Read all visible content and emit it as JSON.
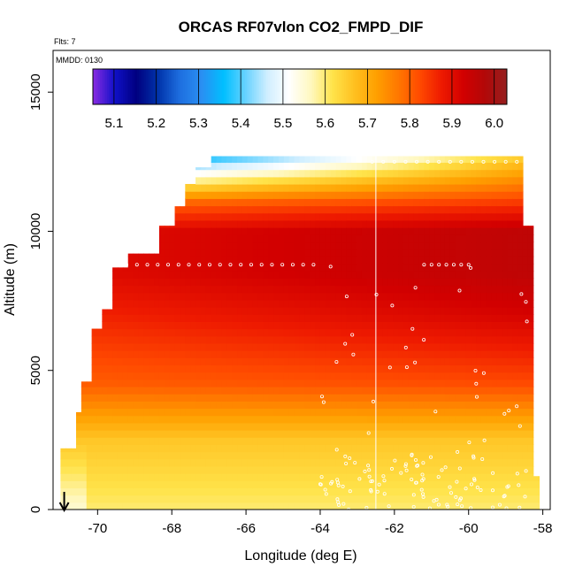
{
  "chart_data": {
    "type": "heatmap",
    "title": "ORCAS RF07vlon CO2_FMPD_DIF",
    "annotations": [
      "Flts: 7",
      "MMDD: 0130"
    ],
    "xlabel": "Longitude (deg E)",
    "ylabel": "Altitude (m)",
    "xlim": [
      -71.2,
      -57.8
    ],
    "ylim": [
      0,
      16500
    ],
    "x_ticks": [
      -70,
      -68,
      -66,
      -64,
      -62,
      -60,
      -58
    ],
    "x_tick_labels": [
      "-70",
      "-68",
      "-66",
      "-64",
      "-62",
      "-60",
      "-58"
    ],
    "y_ticks": [
      0,
      5000,
      10000,
      15000
    ],
    "y_tick_labels": [
      "0",
      "5000",
      "10000",
      "15000"
    ],
    "colorbar": {
      "range": [
        5.05,
        6.03
      ],
      "ticks": [
        5.1,
        5.2,
        5.3,
        5.4,
        5.5,
        5.6,
        5.7,
        5.8,
        5.9,
        6.0
      ],
      "tick_labels": [
        "5.1",
        "5.2",
        "5.3",
        "5.4",
        "5.5",
        "5.6",
        "5.7",
        "5.8",
        "5.9",
        "6.0"
      ],
      "colors": [
        "#8a2be2",
        "#1010c8",
        "#000080",
        "#0033aa",
        "#1e6fe0",
        "#2a8ff2",
        "#00bfff",
        "#66d2ff",
        "#cfeeff",
        "#ffffff",
        "#fff8c0",
        "#ffe34a",
        "#ffc020",
        "#ffa000",
        "#ff7800",
        "#ff4a00",
        "#ee1a00",
        "#d20000",
        "#b20808",
        "#952020"
      ]
    },
    "field_description": {
      "longitude_range": [
        -71.0,
        -58.1
      ],
      "altitude_range": [
        0,
        13000
      ],
      "value_range": [
        5.05,
        6.0
      ],
      "low_altitude_values": "5.55-5.75",
      "mid_altitude_values": "5.8-5.95",
      "upper_east_values": "5.95-6.0",
      "top_west_values": "5.05-5.45"
    },
    "grid": false,
    "legend": "colorbar top-inside",
    "marker": {
      "type": "arrow-down",
      "longitude": -70.9
    },
    "vertical_line_longitude": -62.5
  }
}
